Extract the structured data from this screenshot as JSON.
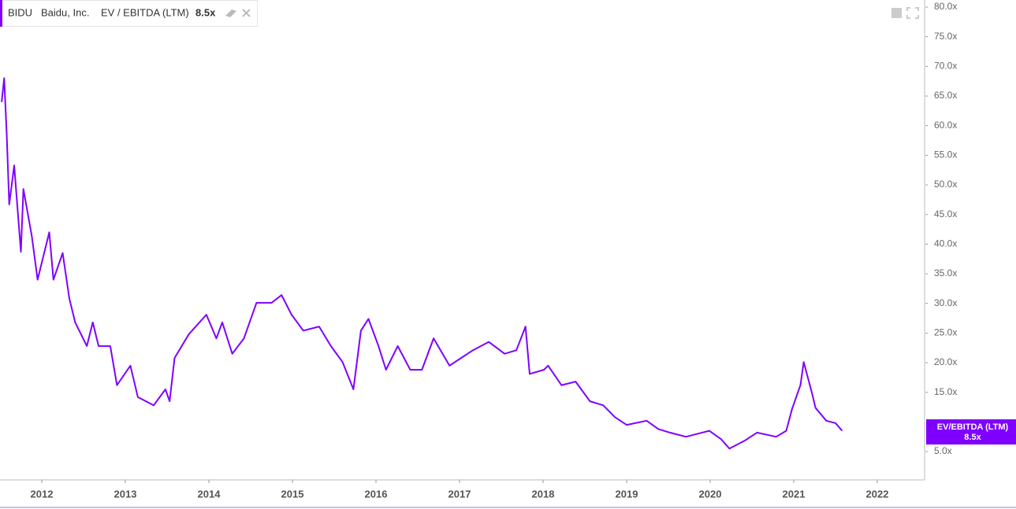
{
  "chart_data": {
    "type": "line",
    "ticker": "BIDU",
    "company": "Baidu, Inc.",
    "metric": "EV / EBITDA (LTM)",
    "current_value_label": "8.5x",
    "x": [
      2011.52,
      2011.55,
      2011.58,
      2011.61,
      2011.67,
      2011.75,
      2011.78,
      2011.88,
      2011.95,
      2012.09,
      2012.14,
      2012.25,
      2012.33,
      2012.4,
      2012.54,
      2012.61,
      2012.68,
      2012.82,
      2012.9,
      2013.06,
      2013.15,
      2013.34,
      2013.48,
      2013.53,
      2013.59,
      2013.76,
      2013.97,
      2014.09,
      2014.16,
      2014.28,
      2014.42,
      2014.57,
      2014.75,
      2014.87,
      2014.99,
      2015.13,
      2015.32,
      2015.46,
      2015.6,
      2015.73,
      2015.82,
      2015.91,
      2016.03,
      2016.12,
      2016.26,
      2016.41,
      2016.55,
      2016.69,
      2016.88,
      2017.02,
      2017.16,
      2017.35,
      2017.54,
      2017.68,
      2017.79,
      2017.84,
      2018.01,
      2018.06,
      2018.22,
      2018.39,
      2018.56,
      2018.72,
      2018.86,
      2019.0,
      2019.24,
      2019.38,
      2019.52,
      2019.71,
      2019.99,
      2020.13,
      2020.23,
      2020.42,
      2020.56,
      2020.79,
      2020.91,
      2020.98,
      2021.08,
      2021.12,
      2021.22,
      2021.26,
      2021.39,
      2021.5,
      2021.58
    ],
    "series": [
      {
        "name": "EV/EBITDA (LTM)",
        "color": "#7f00ff",
        "values": [
          64,
          68,
          58.6,
          46.7,
          53.3,
          38.7,
          49.3,
          41.4,
          34,
          42,
          34,
          38.5,
          30.8,
          26.8,
          22.8,
          26.8,
          22.8,
          22.8,
          16.2,
          19.5,
          14.2,
          12.8,
          15.5,
          13.5,
          20.8,
          24.8,
          28.1,
          24.1,
          26.8,
          21.5,
          24.1,
          30.1,
          30.1,
          31.4,
          28.1,
          25.4,
          26.1,
          22.8,
          20.1,
          15.5,
          25.4,
          27.4,
          22.8,
          18.8,
          22.8,
          18.8,
          18.8,
          24.1,
          19.5,
          20.8,
          22.1,
          23.5,
          21.5,
          22.1,
          26.1,
          18.1,
          18.8,
          19.5,
          16.2,
          16.8,
          13.5,
          12.8,
          10.8,
          9.5,
          10.2,
          8.8,
          8.2,
          7.5,
          8.5,
          7.1,
          5.5,
          6.9,
          8.2,
          7.5,
          8.5,
          12.2,
          16.2,
          20.1,
          14.8,
          12.4,
          10.2,
          9.8,
          8.5
        ]
      }
    ],
    "xlim": [
      2011.5,
      2022.566
    ],
    "xticks": [
      2012,
      2013,
      2014,
      2015,
      2016,
      2017,
      2018,
      2019,
      2020,
      2021,
      2022
    ],
    "ylim": [
      0.22,
      81.2
    ],
    "yticks": [
      {
        "value": 5,
        "label": "5.0x"
      },
      {
        "value": 15,
        "label": "15.0x"
      },
      {
        "value": 20,
        "label": "20.0x"
      },
      {
        "value": 25,
        "label": "25.0x"
      },
      {
        "value": 30,
        "label": "30.0x"
      },
      {
        "value": 35,
        "label": "35.0x"
      },
      {
        "value": 40,
        "label": "40.0x"
      },
      {
        "value": 45,
        "label": "45.0x"
      },
      {
        "value": 50,
        "label": "50.0x"
      },
      {
        "value": 55,
        "label": "55.0x"
      },
      {
        "value": 60,
        "label": "60.0x"
      },
      {
        "value": 65,
        "label": "65.0x"
      },
      {
        "value": 70,
        "label": "70.0x"
      },
      {
        "value": 75,
        "label": "75.0x"
      },
      {
        "value": 80,
        "label": "80.0x"
      }
    ],
    "grid": false
  }
}
